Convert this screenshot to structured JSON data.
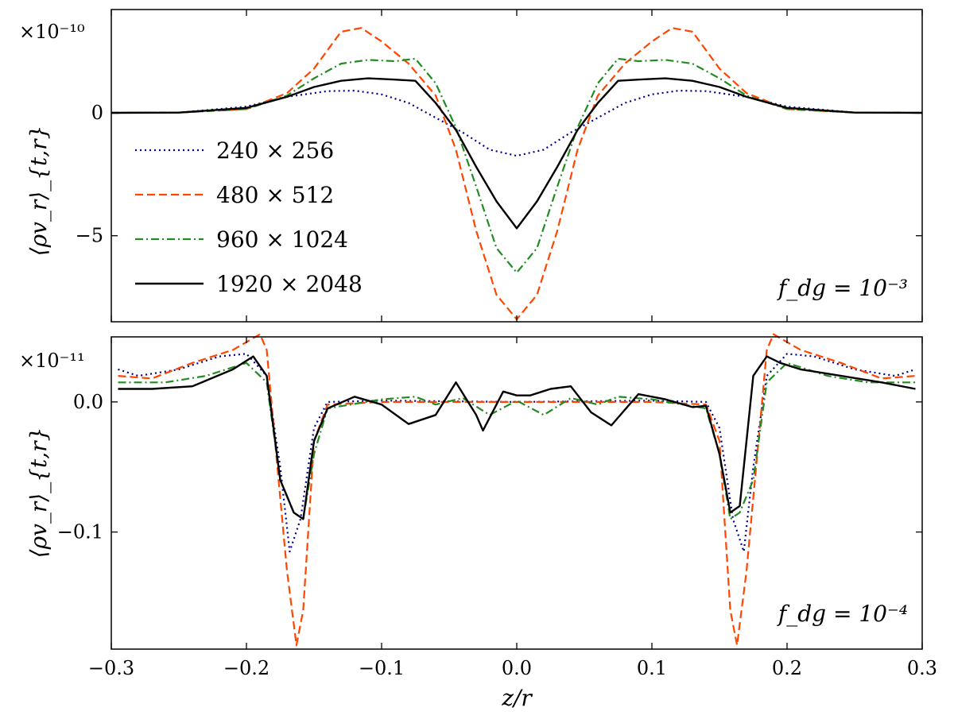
{
  "chart_data": [
    {
      "type": "line",
      "panel": "top",
      "offset_text": "×10⁻¹⁰",
      "ylabel": "⟨ρv_r⟩_{t,r}",
      "xlabel": "",
      "annotation": "f_dg = 10⁻³",
      "xlim": [
        -0.3,
        0.3
      ],
      "ylim": [
        -8.5,
        4.2
      ],
      "yticks": [
        0,
        -5
      ],
      "ytick_labels": [
        "0",
        "−5"
      ],
      "legend_position": "center-left",
      "grid": false,
      "series": [
        {
          "name": "240 × 256",
          "color": "#00008b",
          "dash": "dotted",
          "x": [
            -0.3,
            -0.25,
            -0.2,
            -0.17,
            -0.14,
            -0.12,
            -0.1,
            -0.08,
            -0.06,
            -0.04,
            -0.02,
            0,
            0.02,
            0.04,
            0.06,
            0.08,
            0.1,
            0.12,
            0.14,
            0.17,
            0.2,
            0.25,
            0.3
          ],
          "y": [
            0,
            0.01,
            0.25,
            0.65,
            0.88,
            0.9,
            0.75,
            0.4,
            -0.2,
            -0.8,
            -1.5,
            -1.75,
            -1.5,
            -0.8,
            -0.2,
            0.4,
            0.75,
            0.9,
            0.88,
            0.65,
            0.25,
            0.01,
            0
          ]
        },
        {
          "name": "480 × 512",
          "color": "#ff4500",
          "dash": "dashed",
          "x": [
            -0.3,
            -0.25,
            -0.2,
            -0.17,
            -0.15,
            -0.13,
            -0.115,
            -0.1,
            -0.08,
            -0.06,
            -0.045,
            -0.03,
            -0.015,
            0,
            0.015,
            0.03,
            0.045,
            0.06,
            0.08,
            0.1,
            0.115,
            0.13,
            0.15,
            0.17,
            0.2,
            0.25,
            0.3
          ],
          "y": [
            0,
            0.01,
            0.15,
            0.8,
            1.8,
            3.3,
            3.45,
            2.9,
            2.0,
            0.7,
            -1.5,
            -4.8,
            -7.4,
            -8.4,
            -7.4,
            -4.8,
            -1.5,
            0.7,
            2.0,
            2.9,
            3.45,
            3.3,
            1.8,
            0.8,
            0.15,
            0.01,
            0
          ]
        },
        {
          "name": "960 × 1024",
          "color": "#228b22",
          "dash": "dashdot",
          "x": [
            -0.3,
            -0.25,
            -0.2,
            -0.17,
            -0.15,
            -0.13,
            -0.11,
            -0.09,
            -0.075,
            -0.06,
            -0.045,
            -0.03,
            -0.015,
            0,
            0.015,
            0.03,
            0.045,
            0.06,
            0.075,
            0.09,
            0.11,
            0.13,
            0.15,
            0.17,
            0.2,
            0.25,
            0.3
          ],
          "y": [
            0,
            0.01,
            0.15,
            0.7,
            1.4,
            2.0,
            2.15,
            2.1,
            2.2,
            1.2,
            -0.6,
            -3.0,
            -5.5,
            -6.5,
            -5.5,
            -3.0,
            -0.6,
            1.2,
            2.2,
            2.1,
            2.15,
            2.0,
            1.4,
            0.7,
            0.15,
            0.01,
            0
          ]
        },
        {
          "name": "1920 × 2048",
          "color": "#000000",
          "dash": "solid",
          "x": [
            -0.3,
            -0.25,
            -0.2,
            -0.17,
            -0.15,
            -0.13,
            -0.11,
            -0.09,
            -0.075,
            -0.06,
            -0.045,
            -0.03,
            -0.015,
            0,
            0.015,
            0.03,
            0.045,
            0.06,
            0.075,
            0.09,
            0.11,
            0.13,
            0.15,
            0.17,
            0.2,
            0.25,
            0.3
          ],
          "y": [
            0,
            0.01,
            0.2,
            0.65,
            1.05,
            1.3,
            1.4,
            1.35,
            1.3,
            0.4,
            -0.7,
            -2.2,
            -3.6,
            -4.7,
            -3.6,
            -2.2,
            -0.7,
            0.4,
            1.3,
            1.35,
            1.4,
            1.3,
            1.05,
            0.65,
            0.2,
            0.01,
            0
          ]
        }
      ]
    },
    {
      "type": "line",
      "panel": "bottom",
      "offset_text": "×10⁻¹¹",
      "ylabel": "⟨ρv_r⟩_{t,r}",
      "xlabel": "z/r",
      "annotation": "f_dg = 10⁻⁴",
      "xlim": [
        -0.3,
        0.3
      ],
      "ylim": [
        -0.19,
        0.05
      ],
      "yticks": [
        0.0,
        -0.1
      ],
      "ytick_labels": [
        "0.0",
        "−0.1"
      ],
      "xticks": [
        -0.3,
        -0.2,
        -0.1,
        0.0,
        0.1,
        0.2,
        0.3
      ],
      "xtick_labels": [
        "−0.3",
        "−0.2",
        "−0.1",
        "0.0",
        "0.1",
        "0.2",
        "0.3"
      ],
      "grid": false,
      "series": [
        {
          "name": "240 × 256",
          "color": "#00008b",
          "dash": "dotted",
          "x": [
            -0.295,
            -0.28,
            -0.25,
            -0.22,
            -0.2,
            -0.185,
            -0.175,
            -0.168,
            -0.16,
            -0.15,
            -0.14,
            -0.1,
            0,
            0.1,
            0.14,
            0.15,
            0.16,
            0.168,
            0.175,
            0.185,
            0.2,
            0.22,
            0.25,
            0.28,
            0.295
          ],
          "y": [
            0.025,
            0.02,
            0.025,
            0.035,
            0.037,
            0.02,
            -0.05,
            -0.115,
            -0.09,
            -0.02,
            0,
            0.001,
            0,
            0.001,
            0,
            -0.02,
            -0.09,
            -0.115,
            -0.05,
            0.02,
            0.037,
            0.035,
            0.025,
            0.02,
            0.025
          ]
        },
        {
          "name": "480 × 512",
          "color": "#ff4500",
          "dash": "dashed",
          "x": [
            -0.295,
            -0.27,
            -0.24,
            -0.21,
            -0.19,
            -0.185,
            -0.178,
            -0.17,
            -0.163,
            -0.158,
            -0.15,
            -0.14,
            -0.1,
            0,
            0.1,
            0.14,
            0.15,
            0.158,
            0.163,
            0.17,
            0.178,
            0.185,
            0.19,
            0.21,
            0.24,
            0.27,
            0.295
          ],
          "y": [
            0.02,
            0.018,
            0.03,
            0.04,
            0.052,
            0.04,
            -0.04,
            -0.13,
            -0.187,
            -0.16,
            -0.03,
            -0.002,
            0,
            0,
            0,
            -0.002,
            -0.03,
            -0.16,
            -0.187,
            -0.13,
            -0.04,
            0.04,
            0.052,
            0.04,
            0.03,
            0.018,
            0.02
          ]
        },
        {
          "name": "960 × 1024",
          "color": "#228b22",
          "dash": "dashdot",
          "x": [
            -0.295,
            -0.26,
            -0.23,
            -0.2,
            -0.185,
            -0.175,
            -0.165,
            -0.158,
            -0.15,
            -0.14,
            -0.1,
            -0.075,
            -0.06,
            -0.04,
            -0.02,
            0,
            0.02,
            0.04,
            0.06,
            0.075,
            0.1,
            0.14,
            0.15,
            0.158,
            0.165,
            0.175,
            0.185,
            0.2,
            0.23,
            0.26,
            0.295
          ],
          "y": [
            0.015,
            0.015,
            0.02,
            0.03,
            0.015,
            -0.06,
            -0.085,
            -0.09,
            -0.04,
            -0.005,
            0.002,
            0.004,
            -0.002,
            0.003,
            -0.01,
            0.001,
            -0.01,
            0.003,
            -0.002,
            0.004,
            0.002,
            -0.005,
            -0.04,
            -0.09,
            -0.085,
            -0.06,
            0.015,
            0.03,
            0.02,
            0.015,
            0.015
          ]
        },
        {
          "name": "1920 × 2048",
          "color": "#000000",
          "dash": "solid",
          "x": [
            -0.295,
            -0.27,
            -0.24,
            -0.21,
            -0.195,
            -0.185,
            -0.175,
            -0.165,
            -0.158,
            -0.15,
            -0.14,
            -0.12,
            -0.1,
            -0.08,
            -0.06,
            -0.045,
            -0.03,
            -0.025,
            -0.01,
            0,
            0.01,
            0.025,
            0.04,
            0.055,
            0.07,
            0.09,
            0.11,
            0.13,
            0.14,
            0.15,
            0.158,
            0.165,
            0.175,
            0.185,
            0.195,
            0.21,
            0.24,
            0.27,
            0.295
          ],
          "y": [
            0.01,
            0.01,
            0.012,
            0.025,
            0.035,
            0.02,
            -0.06,
            -0.085,
            -0.09,
            -0.03,
            -0.005,
            0.004,
            -0.002,
            -0.017,
            -0.01,
            0.015,
            -0.01,
            -0.022,
            0.008,
            0.005,
            0.005,
            0.01,
            0.012,
            -0.008,
            -0.018,
            0.006,
            0.002,
            -0.004,
            -0.003,
            -0.04,
            -0.085,
            -0.08,
            0.02,
            0.035,
            0.03,
            0.025,
            0.02,
            0.015,
            0.01
          ]
        }
      ]
    }
  ]
}
